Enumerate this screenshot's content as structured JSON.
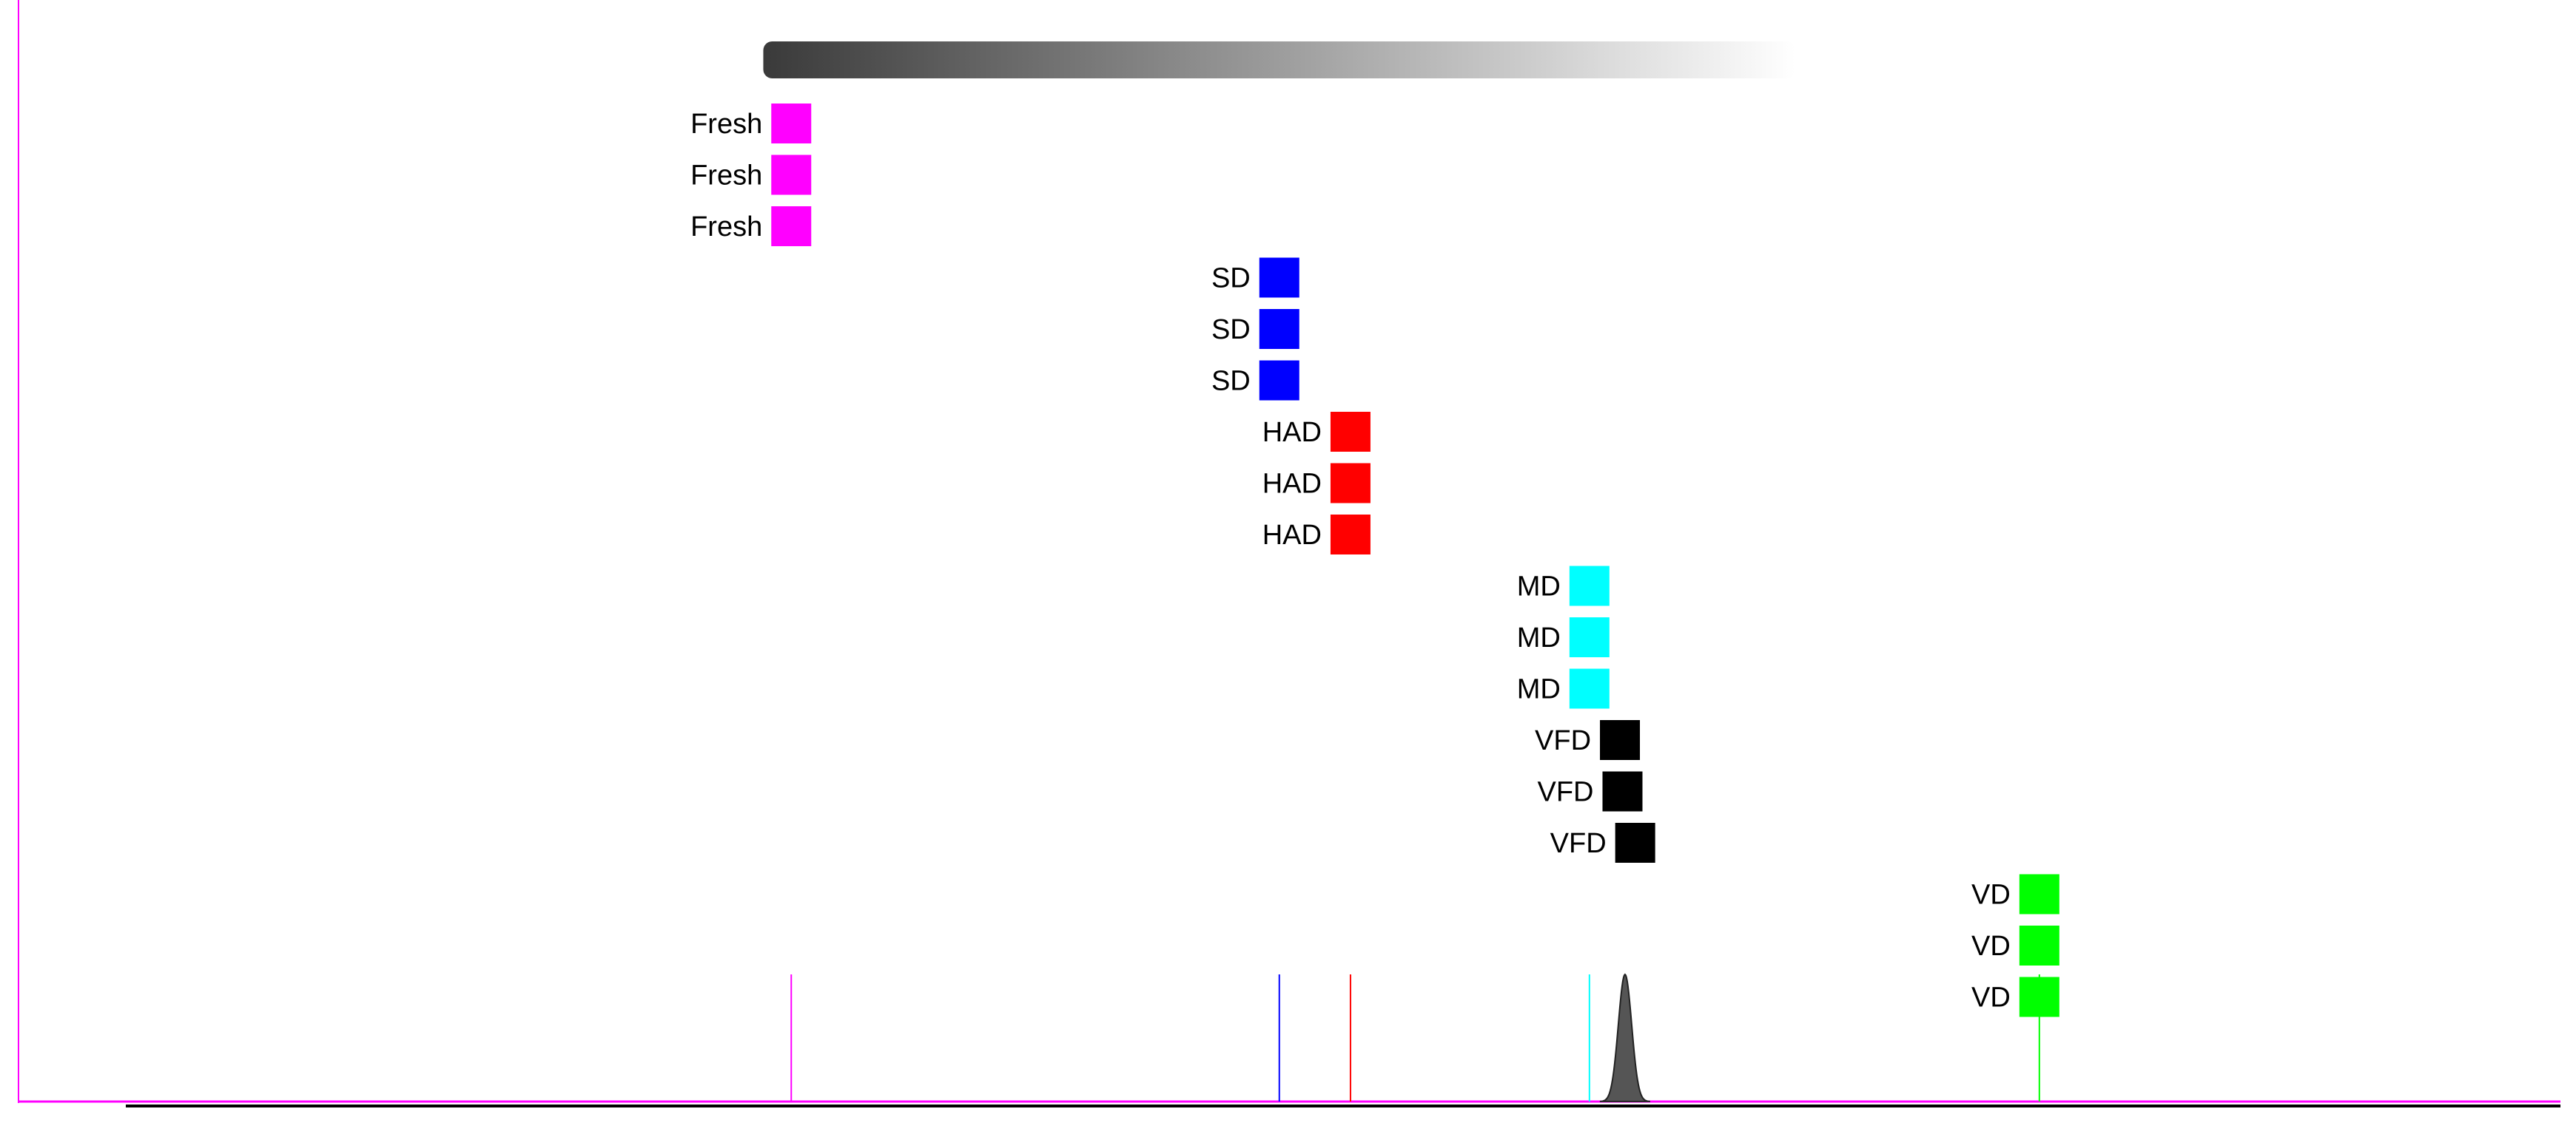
{
  "chart_data": {
    "type": "scatter",
    "title": "",
    "xlabel": "",
    "ylabel": "",
    "xlim": [
      0,
      100
    ],
    "grid": false,
    "legend": "none",
    "gradient_bar": {
      "x_start": 29.3,
      "x_end": 69.9,
      "from": "#3a3a3a",
      "to": "#ffffff"
    },
    "series": [
      {
        "label": "Fresh",
        "color": "#ff00ff",
        "centroid_x": 30.4,
        "points": [
          {
            "x": 30.4
          },
          {
            "x": 30.4
          },
          {
            "x": 30.4
          }
        ]
      },
      {
        "label": "SD",
        "color": "#0000ff",
        "centroid_x": 49.6,
        "points": [
          {
            "x": 49.6
          },
          {
            "x": 49.6
          },
          {
            "x": 49.6
          }
        ]
      },
      {
        "label": "HAD",
        "color": "#ff0000",
        "centroid_x": 52.4,
        "points": [
          {
            "x": 52.4
          },
          {
            "x": 52.4
          },
          {
            "x": 52.4
          }
        ]
      },
      {
        "label": "MD",
        "color": "#00ffff",
        "centroid_x": 61.8,
        "points": [
          {
            "x": 61.8
          },
          {
            "x": 61.8
          },
          {
            "x": 61.8
          }
        ]
      },
      {
        "label": "VFD",
        "color": "#000000",
        "centroid_x": 63.2,
        "points": [
          {
            "x": 63.0
          },
          {
            "x": 63.1
          },
          {
            "x": 63.6
          }
        ]
      },
      {
        "label": "VD",
        "color": "#00ff00",
        "centroid_x": 79.5,
        "points": [
          {
            "x": 79.5
          },
          {
            "x": 79.5
          },
          {
            "x": 79.5
          }
        ]
      }
    ],
    "peak": {
      "center_x": 63.2,
      "color": "#555555"
    }
  }
}
